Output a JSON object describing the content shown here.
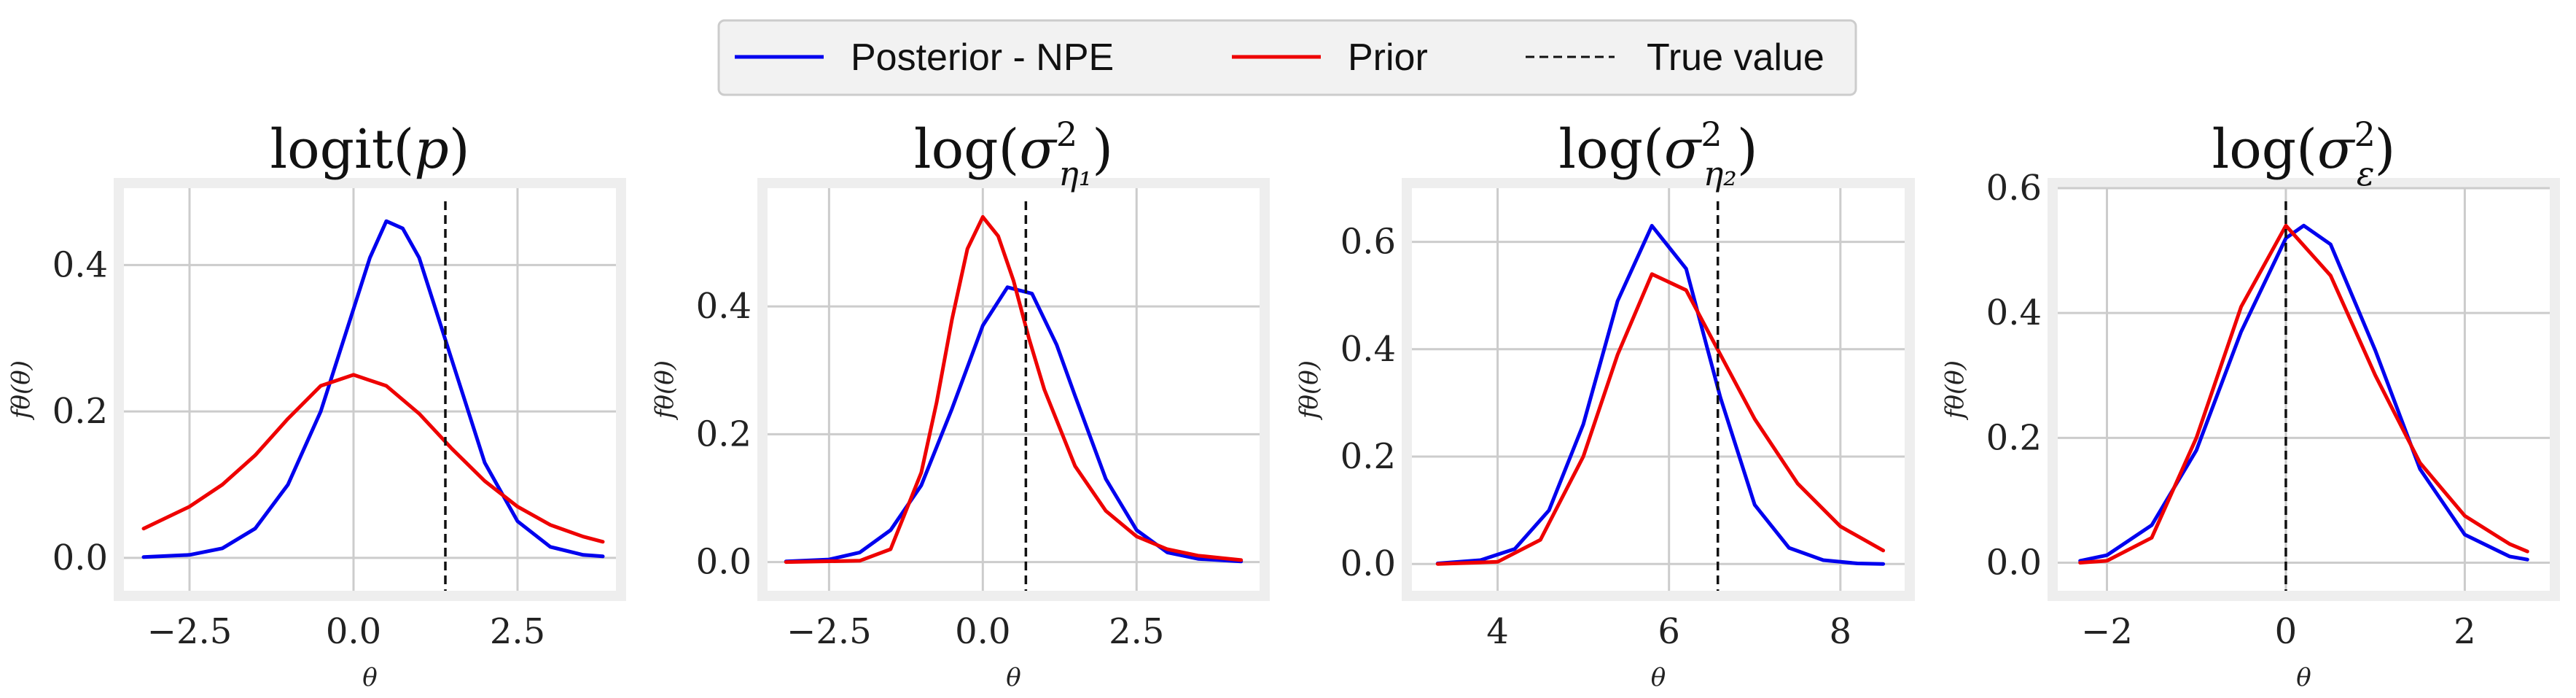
{
  "legend": {
    "items": [
      {
        "label": "Posterior - NPE",
        "color": "#0000ee",
        "style": "solid"
      },
      {
        "label": "Prior",
        "color": "#ee0000",
        "style": "solid"
      },
      {
        "label": "True value",
        "color": "#111111",
        "style": "dashed"
      }
    ]
  },
  "chart_data": [
    {
      "type": "line",
      "title": {
        "base": "logit(",
        "var": "p",
        "end": ")"
      },
      "xlabel": "θ",
      "ylabel": "fθ(θ)",
      "xlim": [
        -3.5,
        4.0
      ],
      "ylim": [
        -0.045,
        0.505
      ],
      "xticks": [
        -2.5,
        0.0,
        2.5
      ],
      "xtick_labels": [
        "−2.5",
        "0.0",
        "2.5"
      ],
      "yticks": [
        0.0,
        0.2,
        0.4
      ],
      "ytick_labels": [
        "0.0",
        "0.2",
        "0.4"
      ],
      "true_value": 1.4,
      "grid": true,
      "series": [
        {
          "name": "Posterior - NPE",
          "color": "#0000ee",
          "x": [
            -3.2,
            -2.5,
            -2.0,
            -1.5,
            -1.0,
            -0.5,
            0.0,
            0.25,
            0.5,
            0.75,
            1.0,
            1.5,
            2.0,
            2.5,
            3.0,
            3.5,
            3.8
          ],
          "y": [
            0.001,
            0.004,
            0.013,
            0.04,
            0.1,
            0.2,
            0.34,
            0.41,
            0.46,
            0.45,
            0.41,
            0.27,
            0.13,
            0.05,
            0.015,
            0.004,
            0.002
          ]
        },
        {
          "name": "Prior",
          "color": "#ee0000",
          "x": [
            -3.2,
            -2.5,
            -2.0,
            -1.5,
            -1.0,
            -0.5,
            0.0,
            0.5,
            1.0,
            1.5,
            2.0,
            2.5,
            3.0,
            3.5,
            3.8
          ],
          "y": [
            0.04,
            0.07,
            0.1,
            0.14,
            0.19,
            0.235,
            0.25,
            0.235,
            0.197,
            0.149,
            0.105,
            0.07,
            0.045,
            0.029,
            0.022
          ]
        }
      ]
    },
    {
      "type": "line",
      "title": {
        "base": "log(",
        "var": "σ",
        "sup": "2",
        "sub": "η₁",
        "end": ")"
      },
      "xlabel": "θ",
      "ylabel": "fθ(θ)",
      "xlim": [
        -3.5,
        4.5
      ],
      "ylim": [
        -0.045,
        0.585
      ],
      "xticks": [
        -2.5,
        0.0,
        2.5
      ],
      "xtick_labels": [
        "−2.5",
        "0.0",
        "2.5"
      ],
      "yticks": [
        0.0,
        0.2,
        0.4
      ],
      "ytick_labels": [
        "0.0",
        "0.2",
        "0.4"
      ],
      "true_value": 0.7,
      "grid": true,
      "series": [
        {
          "name": "Posterior - NPE",
          "color": "#0000ee",
          "x": [
            -3.2,
            -2.5,
            -2.0,
            -1.5,
            -1.0,
            -0.5,
            0.0,
            0.4,
            0.8,
            1.2,
            1.5,
            2.0,
            2.5,
            3.0,
            3.5,
            4.2
          ],
          "y": [
            0.001,
            0.004,
            0.015,
            0.05,
            0.12,
            0.24,
            0.37,
            0.43,
            0.42,
            0.34,
            0.26,
            0.13,
            0.05,
            0.015,
            0.005,
            0.001
          ]
        },
        {
          "name": "Prior",
          "color": "#ee0000",
          "x": [
            -3.2,
            -2.0,
            -1.5,
            -1.0,
            -0.75,
            -0.5,
            -0.25,
            0.0,
            0.25,
            0.5,
            0.75,
            1.0,
            1.5,
            2.0,
            2.5,
            3.0,
            3.5,
            4.2
          ],
          "y": [
            0.0,
            0.002,
            0.02,
            0.14,
            0.25,
            0.38,
            0.49,
            0.54,
            0.51,
            0.44,
            0.35,
            0.27,
            0.15,
            0.08,
            0.04,
            0.02,
            0.01,
            0.003
          ]
        }
      ]
    },
    {
      "type": "line",
      "title": {
        "base": "log(",
        "var": "σ",
        "sup": "2",
        "sub": "η₂",
        "end": ")"
      },
      "xlabel": "θ",
      "ylabel": "fθ(θ)",
      "xlim": [
        3.0,
        8.75
      ],
      "ylim": [
        -0.05,
        0.7
      ],
      "xticks": [
        4,
        6,
        8
      ],
      "xtick_labels": [
        "4",
        "6",
        "8"
      ],
      "yticks": [
        0.0,
        0.2,
        0.4,
        0.6
      ],
      "ytick_labels": [
        "0.0",
        "0.2",
        "0.4",
        "0.6"
      ],
      "true_value": 6.57,
      "grid": true,
      "series": [
        {
          "name": "Posterior - NPE",
          "color": "#0000ee",
          "x": [
            3.3,
            3.8,
            4.2,
            4.6,
            5.0,
            5.4,
            5.8,
            6.2,
            6.6,
            7.0,
            7.4,
            7.8,
            8.2,
            8.5
          ],
          "y": [
            0.001,
            0.007,
            0.028,
            0.1,
            0.26,
            0.49,
            0.63,
            0.55,
            0.31,
            0.11,
            0.03,
            0.007,
            0.001,
            0.0
          ]
        },
        {
          "name": "Prior",
          "color": "#ee0000",
          "x": [
            3.3,
            4.0,
            4.5,
            5.0,
            5.4,
            5.8,
            6.2,
            6.6,
            7.0,
            7.5,
            8.0,
            8.5
          ],
          "y": [
            0.0,
            0.004,
            0.045,
            0.2,
            0.39,
            0.54,
            0.51,
            0.39,
            0.27,
            0.15,
            0.07,
            0.025
          ]
        }
      ]
    },
    {
      "type": "line",
      "title": {
        "base": "log(",
        "var": "σ",
        "sup": "2",
        "sub": "ε",
        "end": ")"
      },
      "xlabel": "θ",
      "ylabel": "fθ(θ)",
      "xlim": [
        -2.55,
        2.95
      ],
      "ylim": [
        -0.045,
        0.6
      ],
      "xticks": [
        -2,
        0,
        2
      ],
      "xtick_labels": [
        "−2",
        "0",
        "2"
      ],
      "yticks": [
        0.0,
        0.2,
        0.4,
        0.6
      ],
      "ytick_labels": [
        "0.0",
        "0.2",
        "0.4",
        "0.6"
      ],
      "true_value": 0.0,
      "grid": true,
      "series": [
        {
          "name": "Posterior - NPE",
          "color": "#0000ee",
          "x": [
            -2.3,
            -2.0,
            -1.5,
            -1.0,
            -0.5,
            0.0,
            0.2,
            0.5,
            1.0,
            1.5,
            2.0,
            2.5,
            2.7
          ],
          "y": [
            0.003,
            0.012,
            0.06,
            0.18,
            0.37,
            0.52,
            0.54,
            0.51,
            0.34,
            0.15,
            0.045,
            0.01,
            0.005
          ]
        },
        {
          "name": "Prior",
          "color": "#ee0000",
          "x": [
            -2.3,
            -2.0,
            -1.5,
            -1.0,
            -0.5,
            0.0,
            0.5,
            1.0,
            1.5,
            2.0,
            2.5,
            2.7
          ],
          "y": [
            0.0,
            0.003,
            0.04,
            0.2,
            0.41,
            0.54,
            0.46,
            0.3,
            0.16,
            0.075,
            0.03,
            0.018
          ]
        }
      ]
    }
  ]
}
